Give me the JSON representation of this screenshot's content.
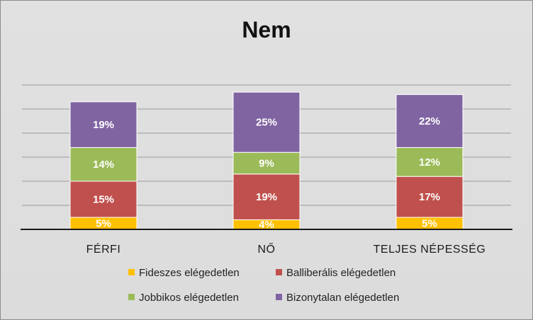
{
  "chart_data": {
    "type": "bar",
    "stacked": true,
    "title": "Nem",
    "categories": [
      "FÉRFI",
      "NŐ",
      "TELJES NÉPESSÉG"
    ],
    "series": [
      {
        "name": "Fideszes elégedetlen",
        "values": [
          5,
          4,
          5
        ],
        "labels": [
          "5%",
          "4%",
          "5%"
        ],
        "color": "#FFC000"
      },
      {
        "name": "Balliberális elégedetlen",
        "values": [
          15,
          19,
          17
        ],
        "labels": [
          "15%",
          "19%",
          "17%"
        ],
        "color": "#C0504D"
      },
      {
        "name": "Jobbikos elégedetlen",
        "values": [
          14,
          9,
          12
        ],
        "labels": [
          "14%",
          "9%",
          "12%"
        ],
        "color": "#9BBB59"
      },
      {
        "name": "Bizonytalan elégedetlen",
        "values": [
          19,
          25,
          22
        ],
        "labels": [
          "19%",
          "25%",
          "22%"
        ],
        "color": "#8064A2"
      }
    ],
    "ylim": [
      0,
      60
    ],
    "grid": true,
    "legend": "bottom"
  }
}
